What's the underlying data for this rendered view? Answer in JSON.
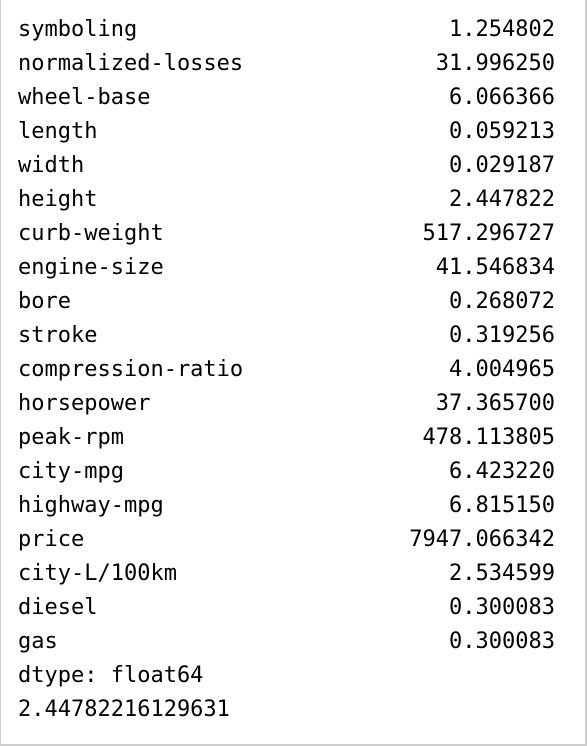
{
  "series": {
    "rows": [
      {
        "label": "symboling",
        "value": "1.254802"
      },
      {
        "label": "normalized-losses",
        "value": "31.996250"
      },
      {
        "label": "wheel-base",
        "value": "6.066366"
      },
      {
        "label": "length",
        "value": "0.059213"
      },
      {
        "label": "width",
        "value": "0.029187"
      },
      {
        "label": "height",
        "value": "2.447822"
      },
      {
        "label": "curb-weight",
        "value": "517.296727"
      },
      {
        "label": "engine-size",
        "value": "41.546834"
      },
      {
        "label": "bore",
        "value": "0.268072"
      },
      {
        "label": "stroke",
        "value": "0.319256"
      },
      {
        "label": "compression-ratio",
        "value": "4.004965"
      },
      {
        "label": "horsepower",
        "value": "37.365700"
      },
      {
        "label": "peak-rpm",
        "value": "478.113805"
      },
      {
        "label": "city-mpg",
        "value": "6.423220"
      },
      {
        "label": "highway-mpg",
        "value": "6.815150"
      },
      {
        "label": "price",
        "value": "7947.066342"
      },
      {
        "label": "city-L/100km",
        "value": "2.534599"
      },
      {
        "label": "diesel",
        "value": "0.300083"
      },
      {
        "label": "gas",
        "value": "0.300083"
      }
    ],
    "dtype_line": "dtype: float64",
    "extra_output": "2.44782216129631"
  }
}
